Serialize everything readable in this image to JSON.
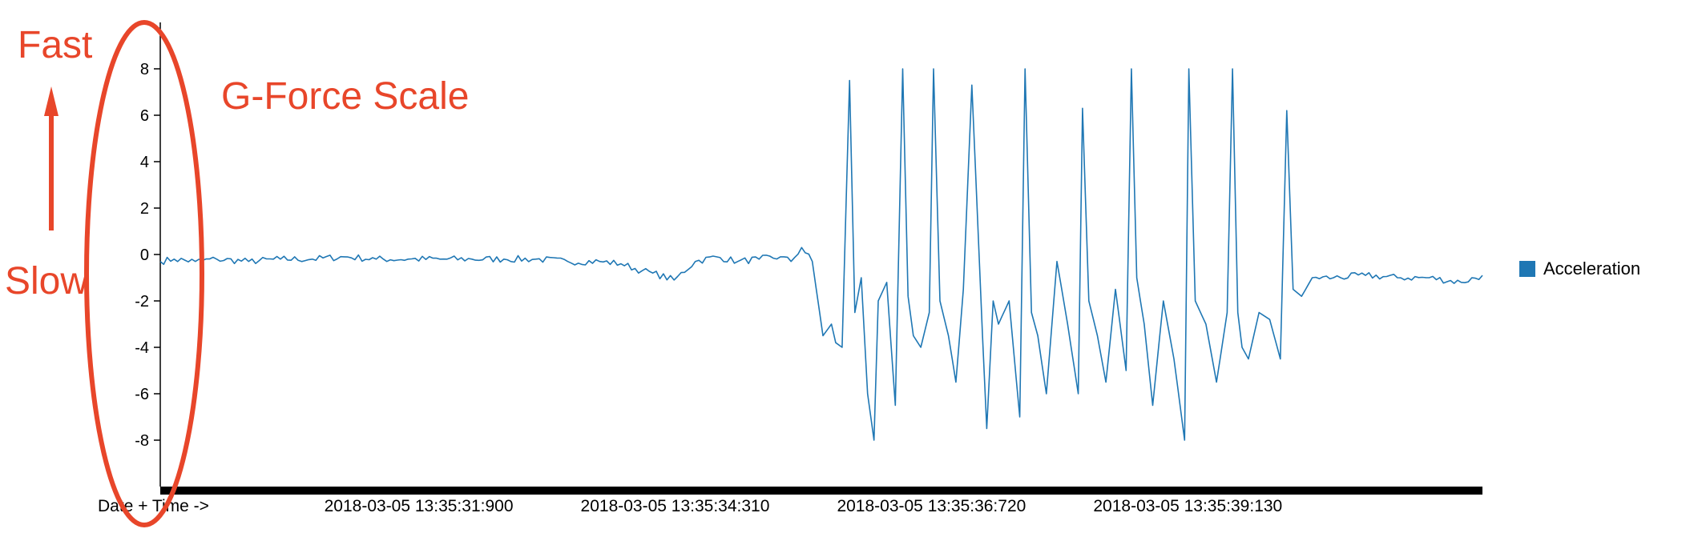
{
  "chart_data": {
    "type": "line",
    "title": "",
    "xlabel": "Date + Time ->",
    "ylabel": "",
    "ylim": [
      -10,
      10
    ],
    "y_ticks": [
      8,
      6,
      4,
      2,
      0,
      -2,
      -4,
      -6,
      -8
    ],
    "y_tick_labels": [
      "8",
      "6",
      "4",
      "2",
      "0",
      "-2",
      "-4",
      "-6",
      "-8"
    ],
    "x_tick_labels": [
      "2018-03-05 13:35:31:900",
      "2018-03-05 13:35:34:310",
      "2018-03-05 13:35:36:720",
      "2018-03-05 13:35:39:130"
    ],
    "x_range": [
      "2018-03-05 13:35:29:470",
      "2018-03-05 13:35:41:900"
    ],
    "grid": false,
    "legend_position": "right",
    "series": [
      {
        "name": "Acceleration",
        "color": "#1f77b4",
        "x": [
          "13:35:29.47",
          "13:35:29.60",
          "13:35:29.80",
          "13:35:30.00",
          "13:35:30.30",
          "13:35:30.60",
          "13:35:30.90",
          "13:35:31.20",
          "13:35:31.50",
          "13:35:31.80",
          "13:35:32.10",
          "13:35:32.40",
          "13:35:32.70",
          "13:35:33.00",
          "13:35:33.30",
          "13:35:33.60",
          "13:35:33.80",
          "13:35:34.00",
          "13:35:34.10",
          "13:35:34.30",
          "13:35:34.50",
          "13:35:34.70",
          "13:35:34.90",
          "13:35:35.10",
          "13:35:35.30",
          "13:35:35.40",
          "13:35:35.50",
          "13:35:35.60",
          "13:35:35.70",
          "13:35:35.78",
          "13:35:35.82",
          "13:35:35.88",
          "13:35:35.95",
          "13:35:36.00",
          "13:35:36.06",
          "13:35:36.12",
          "13:35:36.18",
          "13:35:36.22",
          "13:35:36.30",
          "13:35:36.38",
          "13:35:36.45",
          "13:35:36.50",
          "13:35:36.55",
          "13:35:36.62",
          "13:35:36.70",
          "13:35:36.74",
          "13:35:36.80",
          "13:35:36.88",
          "13:35:36.95",
          "13:35:37.02",
          "13:35:37.10",
          "13:35:37.20",
          "13:35:37.24",
          "13:35:37.30",
          "13:35:37.35",
          "13:35:37.45",
          "13:35:37.55",
          "13:35:37.60",
          "13:35:37.66",
          "13:35:37.72",
          "13:35:37.80",
          "13:35:37.90",
          "13:35:38.00",
          "13:35:38.10",
          "13:35:38.14",
          "13:35:38.20",
          "13:35:38.28",
          "13:35:38.36",
          "13:35:38.45",
          "13:35:38.55",
          "13:35:38.60",
          "13:35:38.65",
          "13:35:38.72",
          "13:35:38.80",
          "13:35:38.90",
          "13:35:39.00",
          "13:35:39.10",
          "13:35:39.14",
          "13:35:39.20",
          "13:35:39.30",
          "13:35:39.40",
          "13:35:39.50",
          "13:35:39.55",
          "13:35:39.60",
          "13:35:39.64",
          "13:35:39.70",
          "13:35:39.80",
          "13:35:39.90",
          "13:35:40.00",
          "13:35:40.06",
          "13:35:40.12",
          "13:35:40.20",
          "13:35:40.30",
          "13:35:40.50",
          "13:35:40.80",
          "13:35:41.10",
          "13:35:41.40",
          "13:35:41.70",
          "13:35:41.90"
        ],
        "values": [
          -0.3,
          -0.2,
          -0.3,
          -0.2,
          -0.3,
          -0.2,
          -0.2,
          -0.1,
          -0.2,
          -0.2,
          -0.2,
          -0.2,
          -0.2,
          -0.2,
          -0.3,
          -0.3,
          -0.4,
          -0.7,
          -0.8,
          -1.1,
          -0.3,
          -0.1,
          -0.3,
          -0.2,
          -0.1,
          -0.3,
          0.3,
          -0.3,
          -3.5,
          -3.0,
          -3.8,
          -4.0,
          7.5,
          -2.5,
          -1.0,
          -6.0,
          -8.0,
          -2.0,
          -1.2,
          -6.5,
          8.0,
          -1.8,
          -3.5,
          -4.0,
          -2.5,
          8.0,
          -2.0,
          -3.5,
          -5.5,
          -1.5,
          7.3,
          -3.5,
          -7.5,
          -2.0,
          -3.0,
          -2.0,
          -7.0,
          8.0,
          -2.5,
          -3.5,
          -6.0,
          -0.3,
          -3.0,
          -6.0,
          6.3,
          -2.0,
          -3.5,
          -5.5,
          -1.5,
          -5.0,
          8.0,
          -1.0,
          -3.0,
          -6.5,
          -2.0,
          -4.5,
          -8.0,
          8.0,
          -2.0,
          -3.0,
          -5.5,
          -2.5,
          8.0,
          -2.5,
          -4.0,
          -4.5,
          -2.5,
          -2.8,
          -4.5,
          6.2,
          -1.5,
          -1.8,
          -1.0,
          -1.0,
          -0.9,
          -1.0,
          -1.0,
          -1.2,
          -0.9
        ]
      }
    ]
  },
  "annotations": {
    "fast_label": "Fast",
    "slow_label": "Slow",
    "scale_label": "G-Force Scale",
    "color": "#e8462a"
  }
}
